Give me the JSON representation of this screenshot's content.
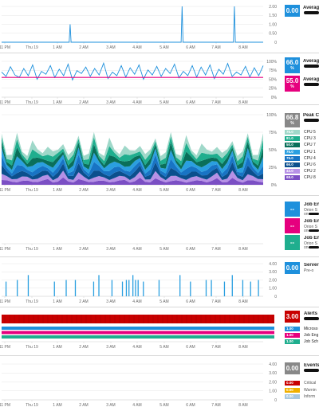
{
  "xaxis": {
    "ticks": [
      "11 PM",
      "Thu 19",
      "1 AM",
      "2 AM",
      "3 AM",
      "4 AM",
      "5 AM",
      "6 AM",
      "7 AM",
      "8 AM"
    ]
  },
  "panels": [
    {
      "id": "p1",
      "yticks": [
        "2.00",
        "1.50",
        "1.00",
        "0.50",
        "0"
      ],
      "badge": {
        "value": "0.00",
        "color": "#1e90dc"
      },
      "label": "Averag",
      "chart_data": {
        "type": "line",
        "ylim": [
          0,
          2
        ],
        "series": [
          {
            "values": [
              0,
              0,
              0,
              0,
              0,
              0,
              0,
              0,
              0,
              0,
              0,
              0,
              0,
              0,
              0,
              0,
              0,
              0,
              0,
              0,
              0,
              0,
              0,
              0,
              0,
              0,
              0,
              0,
              0,
              0,
              0,
              0,
              0,
              0,
              0,
              0,
              0,
              0,
              0,
              0,
              0,
              0,
              0,
              0,
              0,
              0,
              0,
              0,
              0,
              0,
              0,
              0,
              0,
              0,
              0,
              0,
              0,
              0,
              0,
              0,
              0,
              0,
              0,
              0,
              0,
              0,
              0,
              0,
              0,
              0,
              0,
              0,
              0,
              0,
              0,
              0,
              0,
              0,
              0,
              0
            ],
            "spikes": [
              {
                "x": 0.262,
                "y": 1.0
              },
              {
                "x": 0.69,
                "y": 2.0
              },
              {
                "x": 0.89,
                "y": 2.0
              }
            ],
            "color": "#1e90dc"
          }
        ]
      }
    },
    {
      "id": "p2",
      "yticks": [
        "100%",
        "75%",
        "50%",
        "25%",
        "0%"
      ],
      "badges": [
        {
          "value": "66.0",
          "unit": "%",
          "color": "#1e90dc"
        },
        {
          "value": "55.0",
          "unit": "%",
          "color": "#e6007e"
        }
      ],
      "label": "Averag",
      "chart_data": {
        "type": "line",
        "ylim": [
          0,
          100
        ],
        "series": [
          {
            "color": "#1e90dc",
            "values": [
              70,
              58,
              85,
              62,
              55,
              80,
              60,
              90,
              50,
              72,
              64,
              88,
              55,
              78,
              60,
              92,
              48,
              74,
              66,
              84,
              58,
              80,
              62,
              95,
              52,
              70,
              60,
              88,
              56,
              82,
              64,
              90,
              50,
              76,
              62,
              86,
              58,
              80,
              66,
              92,
              54,
              72,
              60,
              88,
              56,
              84,
              62,
              90,
              52,
              78,
              64,
              94,
              58,
              70,
              62,
              86,
              56,
              82,
              60,
              88
            ]
          },
          {
            "color": "#e6007e",
            "values": [
              55,
              55,
              55,
              55,
              55,
              55,
              55,
              55,
              55,
              55,
              55,
              55,
              55,
              55,
              55,
              55,
              55,
              55,
              55,
              55,
              55,
              55,
              55,
              55,
              55,
              55,
              55,
              55,
              55,
              55,
              55,
              55,
              55,
              55,
              55,
              55,
              55,
              55,
              55,
              55,
              55,
              55,
              55,
              55,
              55,
              55,
              55,
              55,
              55,
              55,
              55,
              55,
              55,
              55,
              55,
              55,
              55,
              55,
              55,
              55
            ]
          }
        ]
      }
    },
    {
      "id": "p3",
      "yticks": [
        "100%",
        "75%",
        "50%",
        "25%",
        "0%"
      ],
      "badge": {
        "value": "66.8",
        "unit": "%",
        "color": "#888888"
      },
      "label": "Peak C",
      "cpu_legend": [
        {
          "name": "CPU 5",
          "value": "75.0",
          "color": "#9fd8c9"
        },
        {
          "name": "CPU 3",
          "value": "81.0",
          "color": "#1fae8e"
        },
        {
          "name": "CPU 7",
          "value": "50.0",
          "color": "#0a6f5a"
        },
        {
          "name": "CPU 1",
          "value": "75.0",
          "color": "#2a9fe0"
        },
        {
          "name": "CPU 4",
          "value": "75.0",
          "color": "#1874c4"
        },
        {
          "name": "CPU 6",
          "value": "66.0",
          "color": "#0b4f8d"
        },
        {
          "name": "CPU 2",
          "value": "43.0",
          "color": "#b691e6"
        },
        {
          "name": "CPU 8",
          "value": "68.0",
          "color": "#7b4fc4"
        }
      ],
      "chart_data": {
        "type": "area",
        "ylim": [
          0,
          100
        ],
        "stacked": true
      }
    },
    {
      "id": "p4",
      "yticks": [],
      "jobs": [
        {
          "value": "--",
          "color": "#1e90dc",
          "title": "Job Eng",
          "sub": "Orion S",
          "sub2": "on"
        },
        {
          "value": "--",
          "color": "#e6007e",
          "title": "Job Eng",
          "sub": "Orion S",
          "sub2": "on"
        },
        {
          "value": "--",
          "color": "#1fae8e",
          "title": "Job Eng",
          "sub": "Orion S",
          "sub2": "on"
        }
      ]
    },
    {
      "id": "p5",
      "yticks": [
        "4.00",
        "3.00",
        "2.00",
        "1.00",
        "0"
      ],
      "badge": {
        "value": "0.00",
        "color": "#1e90dc"
      },
      "label": "Server",
      "sub": "Pre-o",
      "chart_data": {
        "type": "bar",
        "ylim": [
          0,
          4
        ],
        "bars": [
          0.015,
          0.058,
          0.1,
          0.2,
          0.245,
          0.28,
          0.35,
          0.37,
          0.42,
          0.46,
          0.475,
          0.485,
          0.5,
          0.51,
          0.52,
          0.54,
          0.6,
          0.68,
          0.72,
          0.78,
          0.8,
          0.85,
          0.88,
          0.92,
          0.95,
          0.98
        ]
      }
    },
    {
      "id": "p6",
      "yticks": [],
      "badge": {
        "value": "3.00",
        "color": "#c80000"
      },
      "label": "Alerts",
      "alerts": [
        {
          "value": "1.00",
          "color": "#1e90dc",
          "name": "Microso"
        },
        {
          "value": "1.00",
          "color": "#e6007e",
          "name": "Job Eng"
        },
        {
          "value": "1.00",
          "color": "#1fae8e",
          "name": "Job Sch"
        }
      ]
    },
    {
      "id": "p7",
      "yticks": [
        "4.00",
        "3.00",
        "2.00",
        "1.00",
        "0"
      ],
      "badge": {
        "value": "0.00",
        "color": "#888888"
      },
      "label": "Events",
      "events": [
        {
          "value": "0.00",
          "color": "#c80000",
          "name": "Critical"
        },
        {
          "value": "0.00",
          "color": "#f0b000",
          "name": "Warnin"
        },
        {
          "value": "0.00",
          "color": "#a8c8e0",
          "name": "Inform"
        }
      ]
    }
  ]
}
